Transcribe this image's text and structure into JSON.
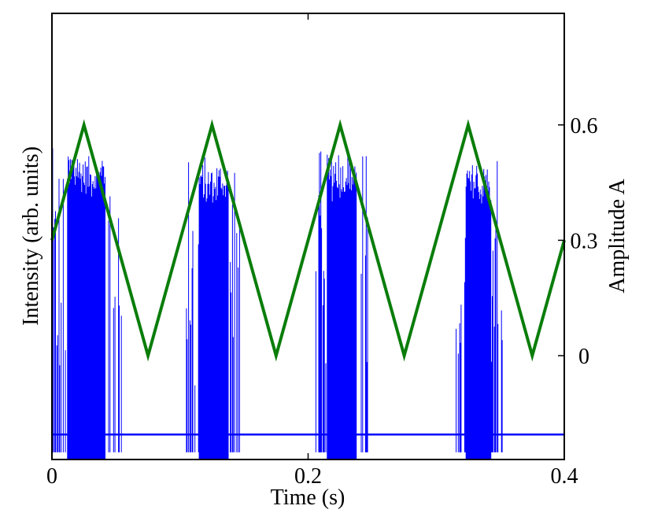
{
  "chart_data": {
    "type": "line",
    "xlabel": "Time (s)",
    "ylabel_left": "Intensity (arb. units)",
    "ylabel_right": "Amplitude A",
    "xlim": [
      0,
      0.4
    ],
    "xticks": [
      {
        "value": 0,
        "label": "0"
      },
      {
        "value": 0.2,
        "label": "0.2"
      },
      {
        "value": 0.4,
        "label": "0.4"
      }
    ],
    "ylim_right": [
      -0.27,
      0.89
    ],
    "yticks_right": [
      {
        "value": 0,
        "label": "0"
      },
      {
        "value": 0.3,
        "label": "0.3"
      },
      {
        "value": 0.6,
        "label": "0.6"
      }
    ],
    "ylim_left": [
      0,
      1
    ],
    "grid": false,
    "legend": "none",
    "series": [
      {
        "axis": "right",
        "color": "#0a7d0a",
        "x": [
          0,
          0.025,
          0.075,
          0.125,
          0.175,
          0.225,
          0.275,
          0.325,
          0.375,
          0.4
        ],
        "y": [
          0.3,
          0.6,
          0.0,
          0.6,
          0.0,
          0.6,
          0.0,
          0.6,
          0.0,
          0.3
        ]
      },
      {
        "axis": "left",
        "color": "#0000ff",
        "baseline": 0.056,
        "bursts": [
          {
            "x_start": 0.0,
            "x_end": 0.055,
            "peak": 0.62,
            "envelope_max": 0.7
          },
          {
            "x_start": 0.105,
            "x_end": 0.148,
            "peak": 0.6,
            "envelope_max": 0.68
          },
          {
            "x_start": 0.205,
            "x_end": 0.248,
            "peak": 0.61,
            "envelope_max": 0.7
          },
          {
            "x_start": 0.315,
            "x_end": 0.352,
            "peak": 0.6,
            "envelope_max": 0.67
          }
        ]
      }
    ]
  }
}
